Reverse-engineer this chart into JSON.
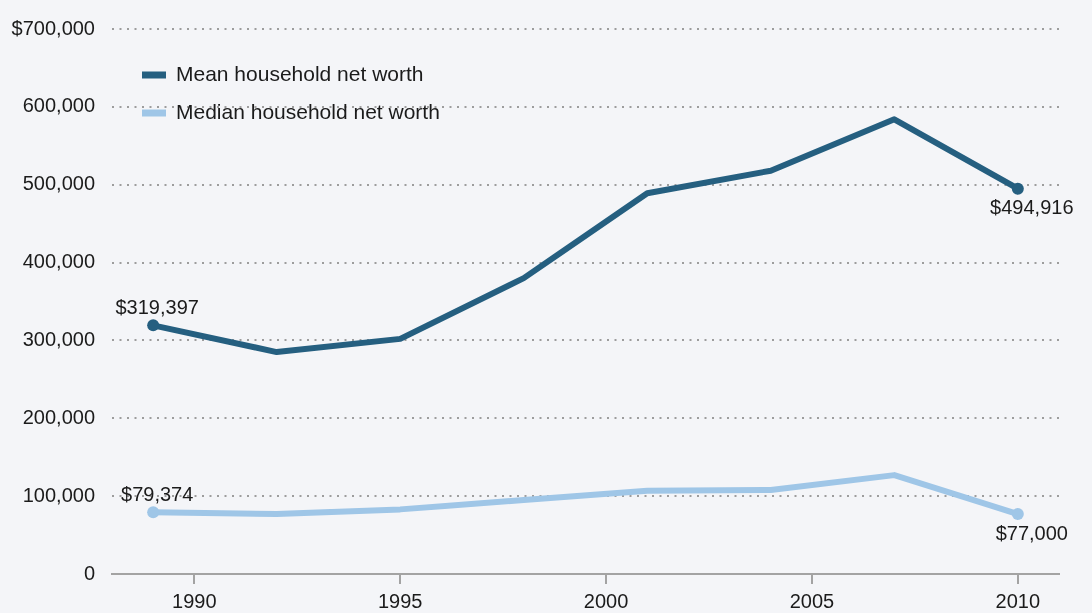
{
  "chart_data": {
    "type": "line",
    "x": [
      1989,
      1992,
      1995,
      1998,
      2001,
      2004,
      2007,
      2010
    ],
    "series": [
      {
        "name": "Mean household net worth",
        "color": "#255f80",
        "values": [
          319397,
          285000,
          302000,
          380000,
          489000,
          518000,
          584000,
          494916
        ],
        "value_labels": [
          "$319,397",
          null,
          null,
          null,
          null,
          null,
          null,
          "$494,916"
        ]
      },
      {
        "name": "Median household net worth",
        "color": "#9fc6e7",
        "values": [
          79374,
          77000,
          83000,
          95000,
          107000,
          108000,
          127000,
          77000
        ],
        "value_labels": [
          "$79,374",
          null,
          null,
          null,
          null,
          null,
          null,
          "$77,000"
        ]
      }
    ],
    "xlim": [
      1988,
      2011
    ],
    "xticks": [
      1990,
      1995,
      2000,
      2005,
      2010
    ],
    "ylim": [
      0,
      700000
    ],
    "yticks": [
      0,
      {
        "value": 100000,
        "label": "100,000"
      },
      {
        "value": 200000,
        "label": "200,000"
      },
      {
        "value": 300000,
        "label": "300,000"
      },
      {
        "value": 400000,
        "label": "400,000"
      },
      {
        "value": 500000,
        "label": "500,000"
      },
      {
        "value": 600000,
        "label": "600,000"
      },
      {
        "value": 700000,
        "label": "$700,000"
      }
    ],
    "grid": "y",
    "legend": "top left"
  }
}
